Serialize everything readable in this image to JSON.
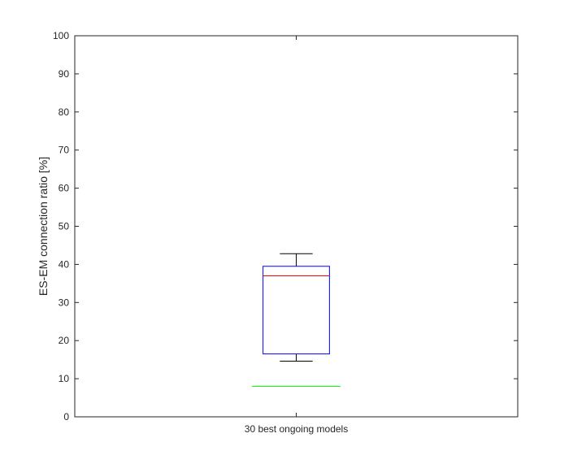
{
  "chart_data": {
    "type": "box",
    "title": "",
    "xlabel": "",
    "ylabel": "ES-EM connection ratio [%]",
    "categories": [
      "30 best ongoing models"
    ],
    "ylim": [
      0,
      100
    ],
    "yticks": [
      0,
      10,
      20,
      30,
      40,
      50,
      60,
      70,
      80,
      90,
      100
    ],
    "grid": false,
    "boxes": [
      {
        "category": "30 best ongoing models",
        "whisker_low": 14.6,
        "q1": 16.5,
        "median": 37.0,
        "q3": 39.5,
        "whisker_high": 42.8,
        "reference_line": 8.0
      }
    ],
    "colors": {
      "box": "#0000ff",
      "median": "#ff0000",
      "whisker": "#000000",
      "reference_line": "#00ff00",
      "axes": "#262626"
    }
  }
}
